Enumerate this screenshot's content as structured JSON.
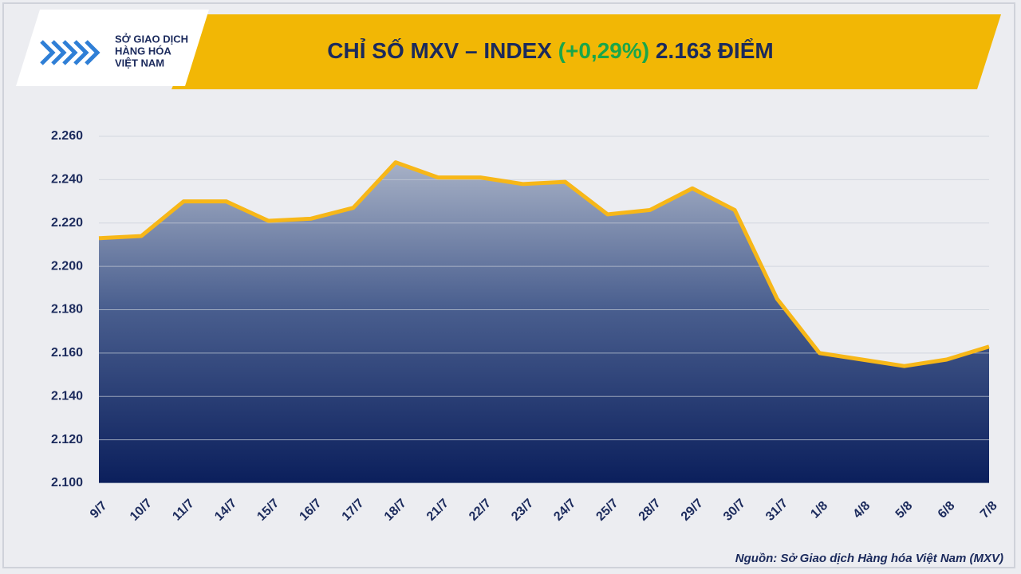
{
  "chart_data": {
    "type": "area",
    "title_parts": [
      "CHỈ SỐ MXV – INDEX",
      "(+0,29%)",
      "2.163 ĐIỂM"
    ],
    "title_colors": [
      "#1b2a5c",
      "#1aa64a",
      "#1b2a5c"
    ],
    "logo_lines": [
      "SỞ GIAO DỊCH",
      "HÀNG HÓA",
      "VIỆT NAM"
    ],
    "source": "Nguồn: Sở Giao dịch Hàng hóa Việt Nam (MXV)",
    "categories": [
      "9/7",
      "10/7",
      "11/7",
      "14/7",
      "15/7",
      "16/7",
      "17/7",
      "18/7",
      "21/7",
      "22/7",
      "23/7",
      "24/7",
      "25/7",
      "28/7",
      "29/7",
      "30/7",
      "31/7",
      "1/8",
      "4/8",
      "5/8",
      "6/8",
      "7/8"
    ],
    "values": [
      2213,
      2214,
      2230,
      2230,
      2221,
      2222,
      2227,
      2248,
      2241,
      2241,
      2238,
      2239,
      2224,
      2226,
      2236,
      2226,
      2185,
      2160,
      2157,
      2154,
      2157,
      2163
    ],
    "color": "#f7b718",
    "ylim": [
      2100,
      2260
    ],
    "yticks": [
      {
        "value": 2100,
        "label": "2.100"
      },
      {
        "value": 2120,
        "label": "2.120"
      },
      {
        "value": 2140,
        "label": "2.140"
      },
      {
        "value": 2160,
        "label": "2.160"
      },
      {
        "value": 2180,
        "label": "2.180"
      },
      {
        "value": 2200,
        "label": "2.200"
      },
      {
        "value": 2220,
        "label": "2.220"
      },
      {
        "value": 2240,
        "label": "2.240"
      },
      {
        "value": 2260,
        "label": "2.260"
      }
    ],
    "grid": true
  }
}
